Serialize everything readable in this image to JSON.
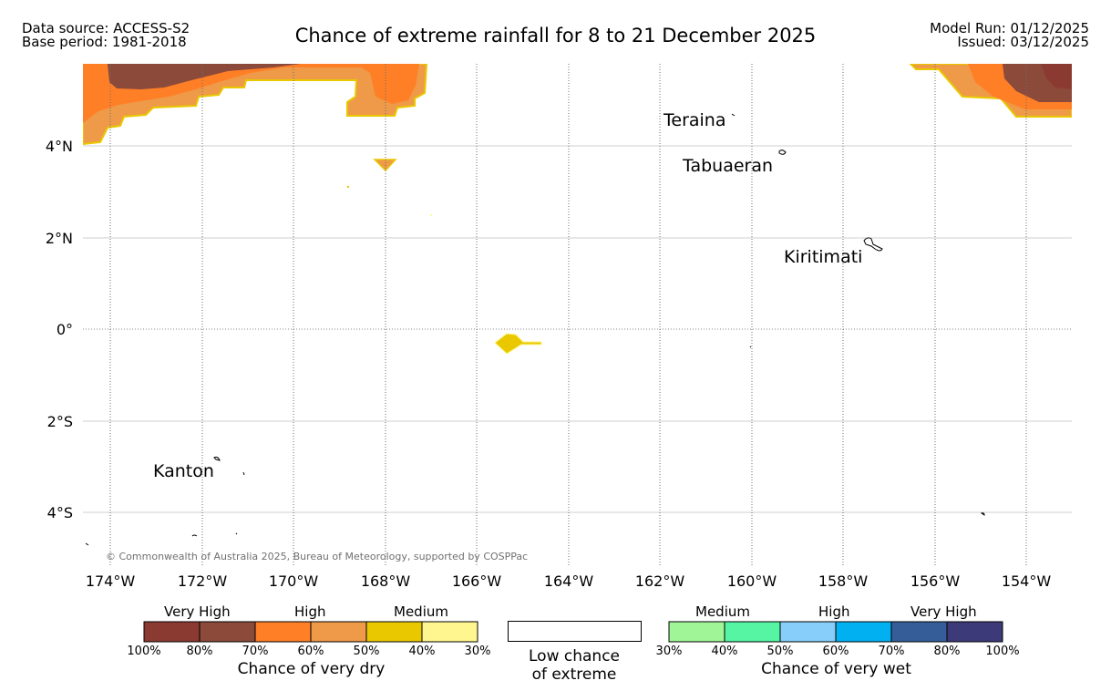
{
  "header": {
    "data_source": "Data source: ACCESS-S2",
    "base_period": "Base period: 1981-2018",
    "title": "Chance of extreme rainfall for 8 to 21 December 2025",
    "model_run": "Model Run: 01/12/2025",
    "issued": "Issued: 03/12/2025"
  },
  "map": {
    "lat_labels": [
      "4°N",
      "2°N",
      "0°",
      "2°S",
      "4°S"
    ],
    "lon_labels": [
      "174°W",
      "172°W",
      "170°W",
      "168°W",
      "166°W",
      "164°W",
      "162°W",
      "160°W",
      "158°W",
      "156°W",
      "154°W"
    ],
    "places": [
      "Teraina",
      "Tabuaeran",
      "Kiritimati",
      "Kanton"
    ],
    "copyright": "© Commonwealth of Australia 2025, Bureau of Meteorology, supported by COSPPac"
  },
  "legend": {
    "dry": {
      "categories": [
        "Very High",
        "High",
        "Medium"
      ],
      "ticks": [
        "100%",
        "80%",
        "70%",
        "60%",
        "50%",
        "40%",
        "30%"
      ],
      "colors": [
        "#8b3a32",
        "#8b4a3a",
        "#ff7f27",
        "#ee9a48",
        "#e9c800",
        "#fff68f"
      ],
      "title": "Chance of very dry"
    },
    "low": {
      "line1": "Low chance",
      "line2": "of extreme"
    },
    "wet": {
      "categories": [
        "Medium",
        "High",
        "Very High"
      ],
      "ticks": [
        "30%",
        "40%",
        "50%",
        "60%",
        "70%",
        "80%",
        "100%"
      ],
      "colors": [
        "#a0f596",
        "#55f5a3",
        "#87cefa",
        "#00b0f0",
        "#355e99",
        "#3c3a78"
      ],
      "title": "Chance of very wet"
    }
  },
  "colors": {
    "very_high_dry": "#8b4a3a",
    "high_dry": "#ff7f27",
    "mid_dry": "#ee9a48",
    "medium_dry": "#e9c800",
    "low_dry": "#fff68f"
  }
}
